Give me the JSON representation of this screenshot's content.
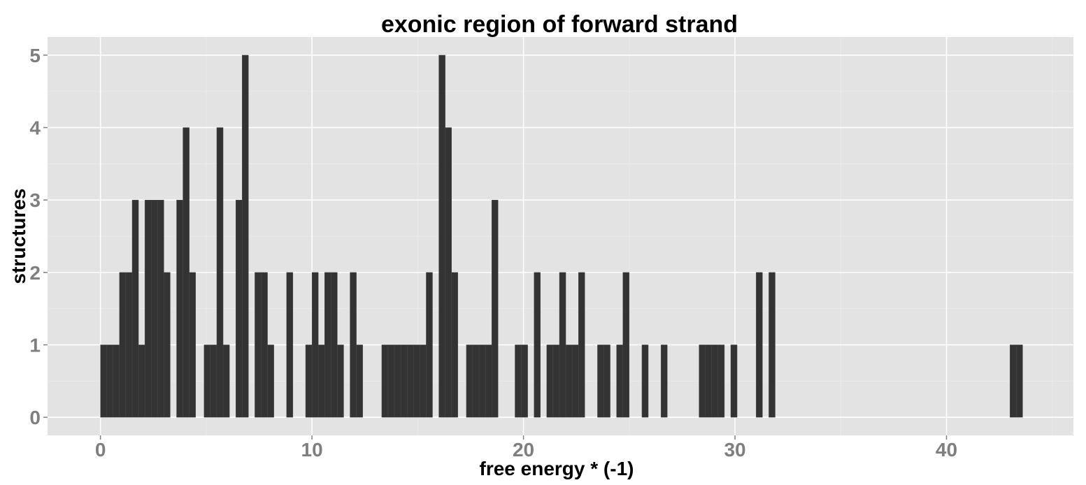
{
  "chart_data": {
    "type": "bar",
    "title": "exonic region of forward strand",
    "xlabel": "free energy * (-1)",
    "ylabel": "structures",
    "xlim": [
      -2.5,
      46
    ],
    "ylim": [
      -0.25,
      5.25
    ],
    "x_ticks": [
      0,
      10,
      20,
      30,
      40
    ],
    "y_ticks": [
      0,
      1,
      2,
      3,
      4,
      5
    ],
    "bin_width": 0.3,
    "grid": true,
    "legend": "none",
    "bar_color": "#333333",
    "panel_background": "#e3e3e3",
    "x": [
      0.15,
      0.45,
      0.75,
      1.05,
      1.35,
      1.65,
      1.95,
      2.25,
      2.55,
      2.85,
      3.15,
      3.75,
      4.05,
      4.35,
      5.05,
      5.35,
      5.65,
      5.95,
      6.55,
      6.85,
      7.45,
      7.75,
      8.05,
      8.95,
      9.85,
      10.15,
      10.45,
      10.75,
      11.05,
      11.35,
      11.95,
      12.25,
      13.45,
      13.75,
      14.05,
      14.35,
      14.65,
      14.95,
      15.25,
      15.55,
      16.15,
      16.45,
      16.75,
      17.45,
      17.75,
      18.05,
      18.35,
      18.65,
      19.75,
      20.05,
      20.65,
      21.25,
      21.55,
      21.85,
      22.15,
      22.45,
      22.75,
      23.65,
      23.95,
      24.55,
      24.85,
      25.75,
      26.65,
      28.45,
      28.75,
      29.05,
      29.35,
      29.95,
      31.15,
      31.75,
      43.15,
      43.45
    ],
    "values": [
      1,
      1,
      1,
      2,
      2,
      3,
      1,
      3,
      3,
      3,
      2,
      3,
      4,
      2,
      1,
      1,
      4,
      1,
      3,
      5,
      2,
      2,
      1,
      2,
      1,
      2,
      1,
      2,
      2,
      1,
      2,
      1,
      1,
      1,
      1,
      1,
      1,
      1,
      1,
      2,
      5,
      4,
      2,
      1,
      1,
      1,
      1,
      3,
      1,
      1,
      2,
      1,
      1,
      2,
      1,
      1,
      2,
      1,
      1,
      1,
      2,
      1,
      1,
      1,
      1,
      1,
      1,
      1,
      2,
      2,
      1,
      1
    ]
  }
}
